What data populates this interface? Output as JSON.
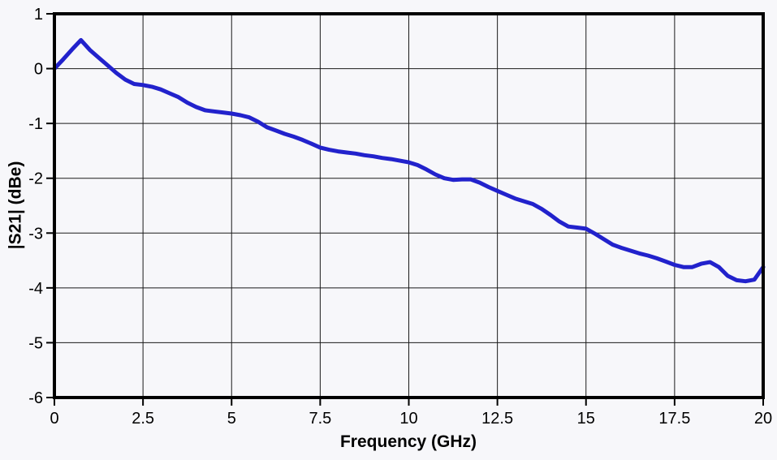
{
  "figure": {
    "background_color": "#f7f7fa",
    "plot_background_color": "#f7f7fa",
    "frame_color": "#000000",
    "grid_color": "#1a1a1a",
    "curve_color": "#2222cc"
  },
  "chart_data": {
    "type": "line",
    "title": "",
    "xlabel": "Frequency (GHz)",
    "ylabel": "|S21| (dBe)",
    "xlim": [
      0,
      20
    ],
    "ylim": [
      -6,
      1
    ],
    "grid": true,
    "legend_position": "none",
    "xticks": [
      "0",
      "2.5",
      "5",
      "7.5",
      "10",
      "12.5",
      "15",
      "17.5",
      "20"
    ],
    "xtick_values": [
      0,
      2.5,
      5,
      7.5,
      10,
      12.5,
      15,
      17.5,
      20
    ],
    "yticks": [
      "1",
      "0",
      "-1",
      "-2",
      "-3",
      "-4",
      "-5",
      "-6"
    ],
    "ytick_values": [
      1,
      0,
      -1,
      -2,
      -3,
      -4,
      -5,
      -6
    ],
    "series": [
      {
        "name": "|S21|",
        "color": "#2222cc",
        "line_width": 5,
        "x": [
          0,
          0.25,
          0.5,
          0.75,
          1,
          1.25,
          1.5,
          1.75,
          2,
          2.25,
          2.5,
          2.75,
          3,
          3.25,
          3.5,
          3.75,
          4,
          4.25,
          4.5,
          4.75,
          5,
          5.25,
          5.5,
          5.75,
          6,
          6.25,
          6.5,
          6.75,
          7,
          7.25,
          7.5,
          7.75,
          8,
          8.25,
          8.5,
          8.75,
          9,
          9.25,
          9.5,
          9.75,
          10,
          10.25,
          10.5,
          10.75,
          11,
          11.25,
          11.5,
          11.75,
          12,
          12.25,
          12.5,
          12.75,
          13,
          13.25,
          13.5,
          13.75,
          14,
          14.25,
          14.5,
          14.75,
          15,
          15.25,
          15.5,
          15.75,
          16,
          16.25,
          16.5,
          16.75,
          17,
          17.25,
          17.5,
          17.75,
          18,
          18.25,
          18.5,
          18.75,
          19,
          19.25,
          19.5,
          19.75,
          20
        ],
        "y": [
          0.0,
          0.17,
          0.35,
          0.52,
          0.34,
          0.2,
          0.06,
          -0.08,
          -0.2,
          -0.28,
          -0.3,
          -0.33,
          -0.38,
          -0.45,
          -0.52,
          -0.62,
          -0.7,
          -0.76,
          -0.78,
          -0.8,
          -0.82,
          -0.85,
          -0.89,
          -0.97,
          -1.07,
          -1.13,
          -1.19,
          -1.24,
          -1.3,
          -1.37,
          -1.44,
          -1.48,
          -1.51,
          -1.53,
          -1.55,
          -1.58,
          -1.6,
          -1.63,
          -1.65,
          -1.68,
          -1.71,
          -1.76,
          -1.84,
          -1.93,
          -2.0,
          -2.03,
          -2.02,
          -2.02,
          -2.08,
          -2.16,
          -2.23,
          -2.3,
          -2.37,
          -2.42,
          -2.47,
          -2.56,
          -2.67,
          -2.79,
          -2.88,
          -2.9,
          -2.92,
          -3.01,
          -3.11,
          -3.21,
          -3.27,
          -3.32,
          -3.37,
          -3.41,
          -3.46,
          -3.52,
          -3.58,
          -3.62,
          -3.62,
          -3.56,
          -3.53,
          -3.62,
          -3.78,
          -3.86,
          -3.88,
          -3.85,
          -3.62
        ]
      }
    ]
  }
}
